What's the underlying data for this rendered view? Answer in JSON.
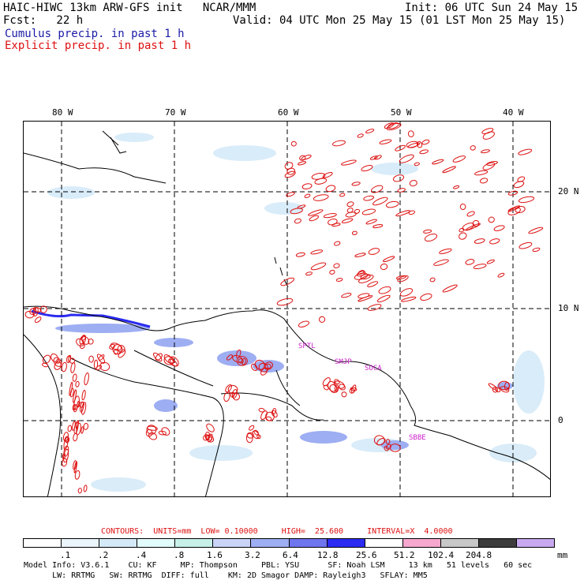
{
  "header": {
    "model_line": "HAIC-HIWC 13km ARW-GFS init   NCAR/MMM",
    "init_line": "Init: 06 UTC Sun 24 May 15",
    "fcst_line": "Fcst:   22 h",
    "valid_line": "Valid: 04 UTC Mon 25 May 15 (01 LST Mon 25 May 15)",
    "cumulus_label": "Cumulus precip. in past 1 h",
    "explicit_label": "Explicit precip. in past 1 h",
    "cumulus_color": "#1a1aa6",
    "explicit_color": "#dd1111"
  },
  "map": {
    "lon_labels": [
      "80 W",
      "70 W",
      "60 W",
      "50 W",
      "40 W"
    ],
    "lat_labels": [
      "20 N",
      "10 N",
      "0"
    ],
    "stations": [
      "SPTL",
      "SMJP",
      "SOCA",
      "SBBE"
    ]
  },
  "legend": {
    "contours_line": "CONTOURS:  UNITS=mm  LOW= 0.10000     HIGH=  25.600     INTERVAL=X  4.0000",
    "colors": [
      "#ffffff",
      "#eaf4fb",
      "#d5eaf8",
      "#e2fbfb",
      "#c7f0e8",
      "#c9d4f7",
      "#9eaef2",
      "#6f74ef",
      "#2b2bf1",
      "#ffffff",
      "#f7a8cf",
      "#c8c8c8",
      "#3c3c3c",
      "#c8a9ef"
    ],
    "ticks": [
      ".1",
      ".2",
      ".4",
      ".8",
      "1.6",
      "3.2",
      "6.4",
      "12.8",
      "25.6",
      "51.2",
      "102.4",
      "204.8"
    ],
    "unit": "mm"
  },
  "model_info": {
    "line1": "Model Info: V3.6.1    CU: KF     MP: Thompson     PBL: YSU      SF: Noah LSM     13 km   51 levels   60 sec",
    "line2": "      LW: RRTMG   SW: RRTMG  DIFF: full    KM: 2D Smagor DAMP: Rayleigh3   SFLAY: MM5"
  }
}
